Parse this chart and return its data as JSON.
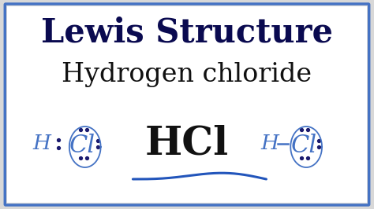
{
  "title1": "Lewis Structure",
  "title2": "Hydrogen chloride",
  "formula": "HCl",
  "bg_color": "#d8d8d8",
  "border_color": "#4472c4",
  "title1_color": "#0a0a50",
  "title2_color": "#111111",
  "formula_color": "#111111",
  "lewis_color": "#4472c4",
  "dot_color": "#1a1a6e",
  "wave_color": "#2255bb",
  "figsize": [
    4.74,
    2.66
  ],
  "dpi": 100
}
